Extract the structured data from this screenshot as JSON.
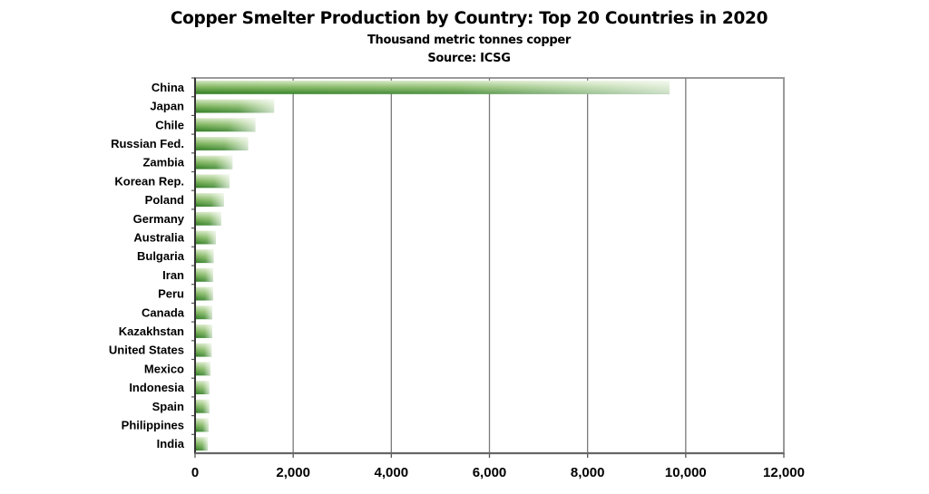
{
  "chart_data": {
    "type": "bar",
    "orientation": "horizontal",
    "title": "Copper Smelter Production by Country: Top 20 Countries in  2020",
    "subtitle": "Thousand metric tonnes copper",
    "source": "Source: ICSG",
    "xlabel": "",
    "ylabel": "",
    "xlim": [
      0,
      12000
    ],
    "xticks": [
      0,
      2000,
      4000,
      6000,
      8000,
      10000,
      12000
    ],
    "xtick_labels": [
      "0",
      "2,000",
      "4,000",
      "6,000",
      "8,000",
      "10,000",
      "12,000"
    ],
    "grid": "vertical",
    "legend": "none",
    "bar_color": "#3a8a2a",
    "categories": [
      "China",
      "Japan",
      "Chile",
      "Russian Fed.",
      "Zambia",
      "Korean Rep.",
      "Poland",
      "Germany",
      "Australia",
      "Bulgaria",
      "Iran",
      "Peru",
      "Canada",
      "Kazakhstan",
      "United States",
      "Mexico",
      "Indonesia",
      "Spain",
      "Philippines",
      "India"
    ],
    "values": [
      9670,
      1610,
      1230,
      1080,
      760,
      700,
      585,
      530,
      420,
      380,
      370,
      370,
      350,
      350,
      335,
      315,
      290,
      290,
      275,
      260
    ]
  }
}
